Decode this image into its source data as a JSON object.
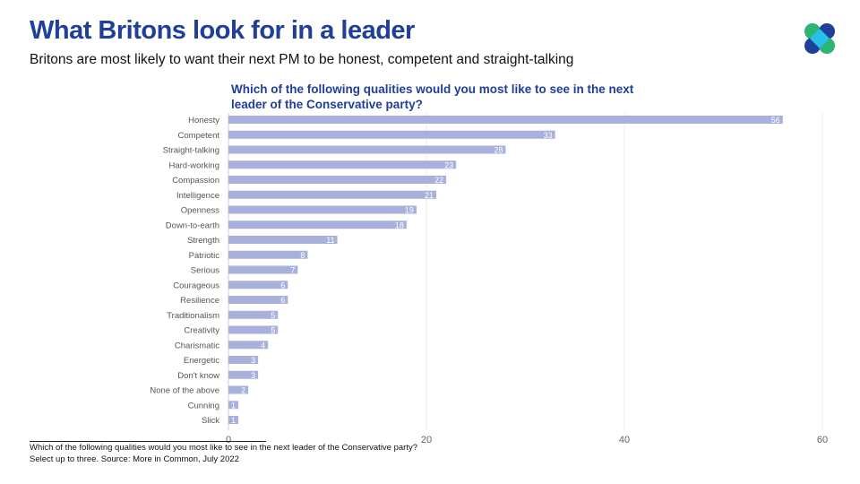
{
  "header": {
    "title": "What Britons look for in a leader",
    "subtitle": "Britons are most likely to want their next PM to be honest, competent and straight-talking"
  },
  "footer": {
    "line1": "Which of the following qualities would you most like to see in the next leader of the Conservative party?",
    "line2": "Select up to three. Source: More in Common, July 2022"
  },
  "logo": {
    "name": "more-in-common-logo",
    "colors": [
      "#1f3f98",
      "#2bb673",
      "#29c0e8"
    ]
  },
  "chart_data": {
    "type": "bar",
    "orientation": "horizontal",
    "title": "Which of the following qualities would you most like to see in the next leader of the Conservative party?",
    "categories": [
      "Honesty",
      "Competent",
      "Straight-talking",
      "Hard-working",
      "Compassion",
      "Intelligence",
      "Openness",
      "Down-to-earth",
      "Strength",
      "Patriotic",
      "Serious",
      "Courageous",
      "Resilience",
      "Traditionalism",
      "Creativity",
      "Charismatic",
      "Energetic",
      "Don't know",
      "None of the above",
      "Cunning",
      "Slick"
    ],
    "values": [
      56,
      33,
      28,
      23,
      22,
      21,
      19,
      18,
      11,
      8,
      7,
      6,
      6,
      5,
      5,
      4,
      3,
      3,
      2,
      1,
      1
    ],
    "xlim": [
      0,
      60
    ],
    "xticks": [
      0,
      20,
      40,
      60
    ],
    "grid": true,
    "bar_color": "#a8b0dc"
  }
}
